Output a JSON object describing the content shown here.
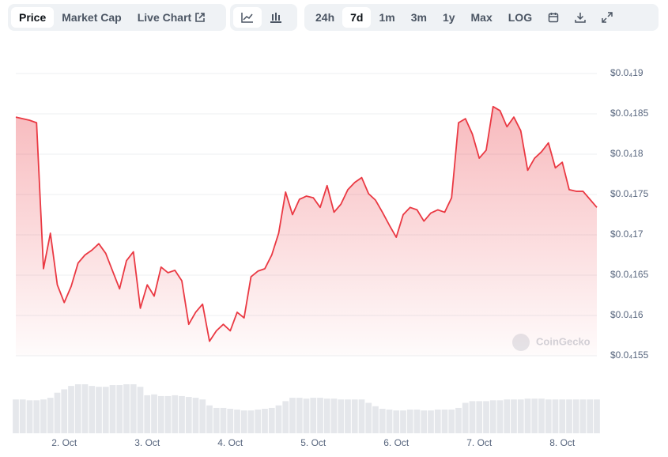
{
  "tabs": [
    "Price",
    "Market Cap",
    "Live Chart"
  ],
  "ranges": [
    "24h",
    "7d",
    "1m",
    "3m",
    "1y",
    "Max",
    "LOG"
  ],
  "watermark": "CoinGecko",
  "chart_data": {
    "type": "line",
    "color": "#ea3943",
    "categories": [
      null,
      null,
      null,
      null,
      null,
      null,
      null,
      "2. Oct",
      null,
      null,
      null,
      null,
      null,
      null,
      null,
      null,
      null,
      null,
      null,
      "3. Oct",
      null,
      null,
      null,
      null,
      null,
      null,
      null,
      null,
      null,
      null,
      null,
      "4. Oct",
      null,
      null,
      null,
      null,
      null,
      null,
      null,
      null,
      null,
      null,
      null,
      "5. Oct",
      null,
      null,
      null,
      null,
      null,
      null,
      null,
      null,
      null,
      null,
      null,
      "6. Oct",
      null,
      null,
      null,
      null,
      null,
      null,
      null,
      null,
      null,
      null,
      null,
      "7. Oct",
      null,
      null,
      null,
      null,
      null,
      null,
      null,
      null,
      null,
      null,
      null,
      "8. Oct",
      null,
      null,
      null,
      null,
      null
    ],
    "values": [
      1.846e-05,
      1.844e-05,
      1.842e-05,
      1.839e-05,
      1.658e-05,
      1.702e-05,
      1.638e-05,
      1.616e-05,
      1.636e-05,
      1.665e-05,
      1.675e-05,
      1.681e-05,
      1.689e-05,
      1.677e-05,
      1.655e-05,
      1.633e-05,
      1.668e-05,
      1.679e-05,
      1.609e-05,
      1.638e-05,
      1.624e-05,
      1.66e-05,
      1.653e-05,
      1.656e-05,
      1.643e-05,
      1.589e-05,
      1.604e-05,
      1.614e-05,
      1.568e-05,
      1.581e-05,
      1.589e-05,
      1.581e-05,
      1.604e-05,
      1.597e-05,
      1.648e-05,
      1.655e-05,
      1.658e-05,
      1.675e-05,
      1.702e-05,
      1.753e-05,
      1.725e-05,
      1.744e-05,
      1.748e-05,
      1.746e-05,
      1.734e-05,
      1.761e-05,
      1.728e-05,
      1.738e-05,
      1.756e-05,
      1.765e-05,
      1.771e-05,
      1.751e-05,
      1.743e-05,
      1.728e-05,
      1.712e-05,
      1.697e-05,
      1.725e-05,
      1.734e-05,
      1.731e-05,
      1.717e-05,
      1.727e-05,
      1.731e-05,
      1.728e-05,
      1.746e-05,
      1.839e-05,
      1.844e-05,
      1.825e-05,
      1.795e-05,
      1.805e-05,
      1.859e-05,
      1.854e-05,
      1.834e-05,
      1.846e-05,
      1.829e-05,
      1.78e-05,
      1.795e-05,
      1.803e-05,
      1.814e-05,
      1.783e-05,
      1.79e-05,
      1.756e-05,
      1.754e-05,
      1.754e-05,
      1.744e-05,
      1.734e-05
    ],
    "volume": [
      40,
      40,
      39,
      39,
      40,
      42,
      48,
      52,
      56,
      58,
      58,
      56,
      55,
      55,
      57,
      57,
      58,
      58,
      55,
      45,
      46,
      44,
      44,
      45,
      44,
      43,
      42,
      40,
      33,
      30,
      30,
      29,
      28,
      27,
      27,
      28,
      29,
      30,
      33,
      38,
      42,
      42,
      41,
      42,
      42,
      41,
      41,
      40,
      40,
      40,
      40,
      36,
      32,
      29,
      28,
      27,
      27,
      28,
      28,
      27,
      27,
      28,
      28,
      28,
      30,
      36,
      38,
      38,
      38,
      39,
      39,
      40,
      40,
      40,
      41,
      41,
      41,
      40,
      40,
      40,
      40,
      40,
      40,
      40,
      40
    ],
    "ylim": [
      1.55e-05,
      1.9e-05
    ],
    "yticks": [
      {
        "value": 1.55e-05,
        "label": "$0.0₄155"
      },
      {
        "value": 1.6e-05,
        "label": "$0.0₄16"
      },
      {
        "value": 1.65e-05,
        "label": "$0.0₄165"
      },
      {
        "value": 1.7e-05,
        "label": "$0.0₄17"
      },
      {
        "value": 1.75e-05,
        "label": "$0.0₄175"
      },
      {
        "value": 1.8e-05,
        "label": "$0.0₄18"
      },
      {
        "value": 1.85e-05,
        "label": "$0.0₄185"
      },
      {
        "value": 1.9e-05,
        "label": "$0.0₄19"
      }
    ],
    "grid": true
  }
}
